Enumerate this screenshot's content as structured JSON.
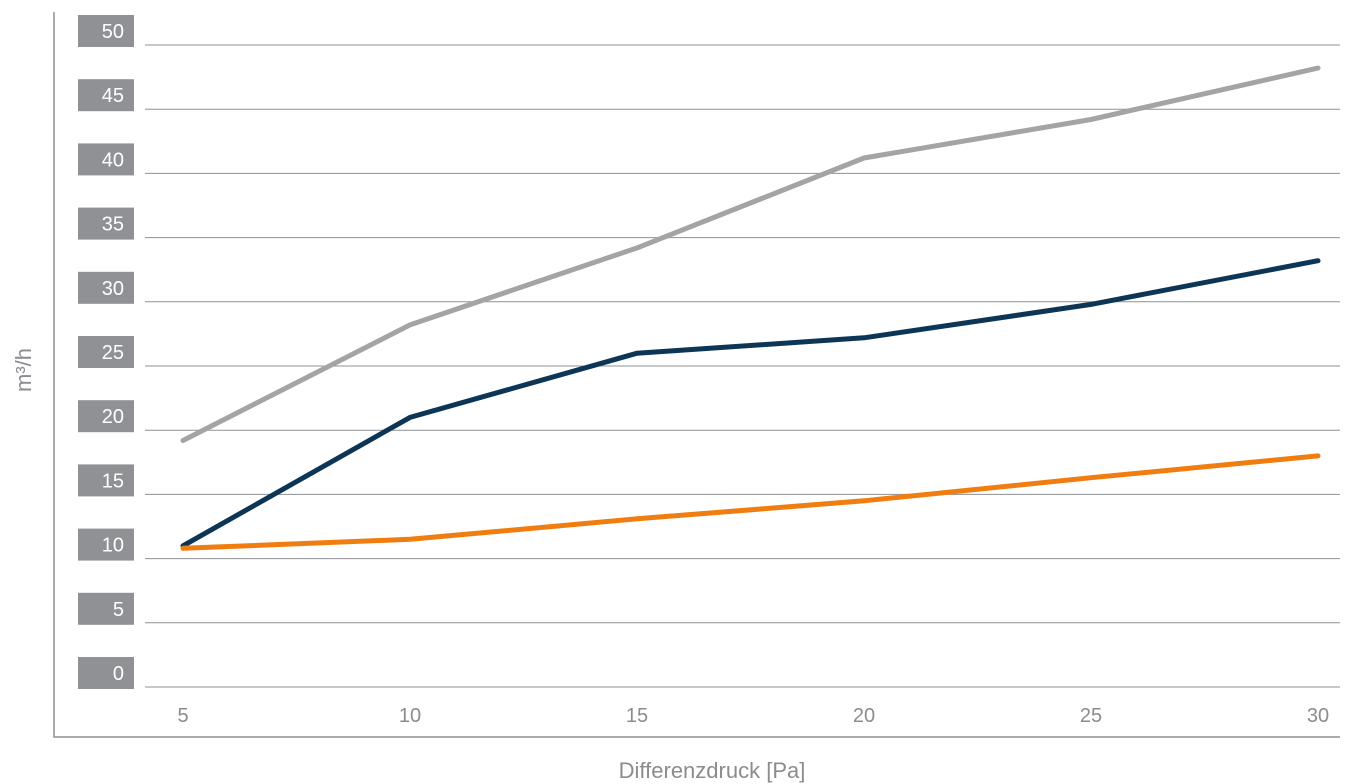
{
  "chart_data": {
    "type": "line",
    "xlabel": "Differenzdruck [Pa]",
    "ylabel": "m³/h",
    "x": [
      5,
      10,
      15,
      20,
      25,
      30
    ],
    "xlim": [
      5,
      30
    ],
    "ylim": [
      0,
      50
    ],
    "yticks": [
      "0",
      "5",
      "10",
      "15",
      "20",
      "25",
      "30",
      "35",
      "40",
      "45",
      "50"
    ],
    "xticks": [
      "5",
      "10",
      "15",
      "20",
      "25",
      "30"
    ],
    "grid": true,
    "series": [
      {
        "values": [
          19.2,
          28.2,
          34.2,
          41.2,
          44.2,
          48.2
        ],
        "color": "#a3a4a6"
      },
      {
        "values": [
          11.0,
          21.0,
          26.0,
          27.2,
          29.8,
          33.2
        ],
        "color": "#0d3556"
      },
      {
        "values": [
          10.8,
          11.5,
          13.1,
          14.5,
          16.3,
          18.0
        ],
        "color": "#f07d10"
      }
    ]
  }
}
